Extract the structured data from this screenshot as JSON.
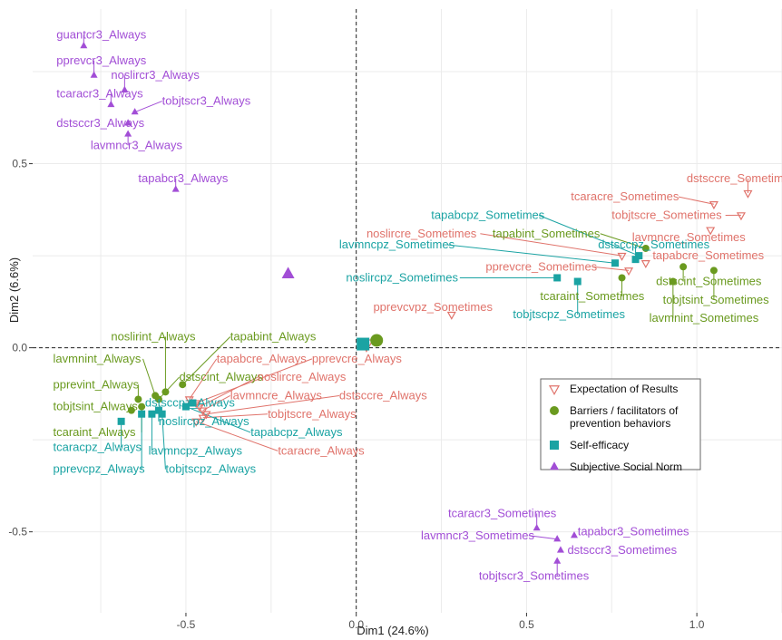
{
  "chart_data": {
    "type": "scatter",
    "xlabel": "Dim1 (24.6%)",
    "ylabel": "Dim2 (6.6%)",
    "xlim": [
      -0.95,
      1.25
    ],
    "ylim": [
      -0.72,
      0.92
    ],
    "xticks": [
      -0.5,
      0.0,
      0.5,
      1.0
    ],
    "xtick_labels": [
      "-0.5",
      "0.0",
      "0.5",
      "1.0"
    ],
    "yticks": [
      -0.5,
      0.0,
      0.5
    ],
    "ytick_labels": [
      "-0.5",
      "0.0",
      "0.5"
    ],
    "grid": true,
    "reference_lines": "dashed lines at x = 0 and y = 0",
    "legend_position": "inside-right",
    "groups": [
      {
        "key": "expectation",
        "legend": "Expectation of Results",
        "shape": "triangle-down-open",
        "color": "#e0736b"
      },
      {
        "key": "barriers",
        "legend": "Barriers / facilitators of\nprevention behaviors",
        "shape": "circle",
        "color": "#6a9a1f"
      },
      {
        "key": "selfefficacy",
        "legend": "Self-efficacy",
        "shape": "square",
        "color": "#1aa3a3"
      },
      {
        "key": "social",
        "legend": "Subjective Social Norm",
        "shape": "triangle-up",
        "color": "#a24ed6"
      }
    ],
    "centroids": [
      {
        "group": "expectation",
        "x": 0.03,
        "y": 0.01
      },
      {
        "group": "barriers",
        "x": 0.06,
        "y": 0.02
      },
      {
        "group": "selfefficacy",
        "x": 0.02,
        "y": 0.01
      },
      {
        "group": "social",
        "x": -0.2,
        "y": 0.2
      }
    ],
    "points": [
      {
        "group": "social",
        "label": "guantcr3_Always",
        "x": -0.8,
        "y": 0.82,
        "lx": -0.88,
        "ly": 0.84
      },
      {
        "group": "social",
        "label": "pprevcr3_Always",
        "x": -0.77,
        "y": 0.74,
        "lx": -0.88,
        "ly": 0.77
      },
      {
        "group": "social",
        "label": "noslircr3_Always",
        "x": -0.68,
        "y": 0.7,
        "lx": -0.72,
        "ly": 0.73
      },
      {
        "group": "social",
        "label": "tcaracr3_Always",
        "x": -0.72,
        "y": 0.66,
        "lx": -0.88,
        "ly": 0.68
      },
      {
        "group": "social",
        "label": "tobjtscr3_Always",
        "x": -0.65,
        "y": 0.64,
        "lx": -0.57,
        "ly": 0.66
      },
      {
        "group": "social",
        "label": "dstsccr3_Always",
        "x": -0.67,
        "y": 0.61,
        "lx": -0.88,
        "ly": 0.6
      },
      {
        "group": "social",
        "label": "lavmncr3_Always",
        "x": -0.67,
        "y": 0.58,
        "lx": -0.78,
        "ly": 0.54
      },
      {
        "group": "social",
        "label": "tapabcr3_Always",
        "x": -0.53,
        "y": 0.43,
        "lx": -0.64,
        "ly": 0.45
      },
      {
        "group": "expectation",
        "label": "dstsccre_Sometimes",
        "x": 1.15,
        "y": 0.42,
        "lx": 0.97,
        "ly": 0.45
      },
      {
        "group": "expectation",
        "label": "tcaracre_Sometimes",
        "x": 1.05,
        "y": 0.39,
        "lx": 0.63,
        "ly": 0.4
      },
      {
        "group": "expectation",
        "label": "tobjtscre_Sometimes",
        "x": 1.13,
        "y": 0.36,
        "lx": 0.75,
        "ly": 0.35
      },
      {
        "group": "expectation",
        "label": "lavmncre_Sometimes",
        "x": 1.04,
        "y": 0.32,
        "lx": 0.81,
        "ly": 0.29
      },
      {
        "group": "expectation",
        "label": "noslircre_Sometimes",
        "x": 0.78,
        "y": 0.25,
        "lx": 0.03,
        "ly": 0.3
      },
      {
        "group": "expectation",
        "label": "tapabcre_Sometimes",
        "x": 0.85,
        "y": 0.23,
        "lx": 0.87,
        "ly": 0.24
      },
      {
        "group": "expectation",
        "label": "pprevcre_Sometimes",
        "x": 0.8,
        "y": 0.21,
        "lx": 0.38,
        "ly": 0.21
      },
      {
        "group": "expectation",
        "label": "pprevcvpz_Sometimes",
        "x": 0.28,
        "y": 0.09,
        "lx": 0.05,
        "ly": 0.1
      },
      {
        "group": "barriers",
        "label": "tapabint_Sometimes",
        "x": 0.85,
        "y": 0.27,
        "lx": 0.4,
        "ly": 0.3
      },
      {
        "group": "barriers",
        "label": "dstscint_Sometimes",
        "x": 0.96,
        "y": 0.22,
        "lx": 0.88,
        "ly": 0.17
      },
      {
        "group": "barriers",
        "label": "tobjtsint_Sometimes",
        "x": 1.05,
        "y": 0.21,
        "lx": 0.9,
        "ly": 0.12
      },
      {
        "group": "barriers",
        "label": "lavmnint_Sometimes",
        "x": 0.93,
        "y": 0.18,
        "lx": 0.86,
        "ly": 0.07
      },
      {
        "group": "barriers",
        "label": "tcaraint_Sometimes",
        "x": 0.78,
        "y": 0.19,
        "lx": 0.54,
        "ly": 0.13
      },
      {
        "group": "selfefficacy",
        "label": "tapabcpz_Sometimes",
        "x": 0.83,
        "y": 0.25,
        "lx": 0.22,
        "ly": 0.35
      },
      {
        "group": "selfefficacy",
        "label": "dstsccpz_Sometimes",
        "x": 0.82,
        "y": 0.24,
        "lx": 0.71,
        "ly": 0.27
      },
      {
        "group": "selfefficacy",
        "label": "lavmncpz_Sometimes",
        "x": 0.76,
        "y": 0.23,
        "lx": -0.05,
        "ly": 0.27
      },
      {
        "group": "selfefficacy",
        "label": "noslircpz_Sometimes",
        "x": 0.59,
        "y": 0.19,
        "lx": -0.03,
        "ly": 0.18
      },
      {
        "group": "selfefficacy",
        "label": "tobjtscpz_Sometimes",
        "x": 0.65,
        "y": 0.18,
        "lx": 0.46,
        "ly": 0.08
      },
      {
        "group": "social",
        "label": "tcaracr3_Sometimes",
        "x": 0.53,
        "y": -0.49,
        "lx": 0.27,
        "ly": -0.46
      },
      {
        "group": "social",
        "label": "lavmncr3_Sometimes",
        "x": 0.59,
        "y": -0.52,
        "lx": 0.19,
        "ly": -0.52
      },
      {
        "group": "social",
        "label": "tapabcr3_Sometimes",
        "x": 0.64,
        "y": -0.51,
        "lx": 0.65,
        "ly": -0.51
      },
      {
        "group": "social",
        "label": "dstsccr3_Sometimes",
        "x": 0.6,
        "y": -0.55,
        "lx": 0.62,
        "ly": -0.56
      },
      {
        "group": "social",
        "label": "tobjtscr3_Sometimes",
        "x": 0.59,
        "y": -0.58,
        "lx": 0.36,
        "ly": -0.63
      },
      {
        "group": "barriers",
        "label": "noslirint_Always",
        "x": -0.56,
        "y": -0.12,
        "lx": -0.72,
        "ly": 0.02
      },
      {
        "group": "barriers",
        "label": "tapabint_Always",
        "x": -0.51,
        "y": -0.1,
        "lx": -0.37,
        "ly": 0.02
      },
      {
        "group": "barriers",
        "label": "lavmnint_Always",
        "x": -0.59,
        "y": -0.13,
        "lx": -0.89,
        "ly": -0.04
      },
      {
        "group": "barriers",
        "label": "dstscint_Always",
        "x": -0.58,
        "y": -0.14,
        "lx": -0.52,
        "ly": -0.09
      },
      {
        "group": "barriers",
        "label": "pprevint_Always",
        "x": -0.64,
        "y": -0.14,
        "lx": -0.89,
        "ly": -0.11
      },
      {
        "group": "barriers",
        "label": "tobjtsint_Always",
        "x": -0.66,
        "y": -0.17,
        "lx": -0.89,
        "ly": -0.17
      },
      {
        "group": "barriers",
        "label": "tcaraint_Always",
        "x": -0.63,
        "y": -0.16,
        "lx": -0.89,
        "ly": -0.24
      },
      {
        "group": "expectation",
        "label": "tapabcre_Always",
        "x": -0.49,
        "y": -0.14,
        "lx": -0.41,
        "ly": -0.04
      },
      {
        "group": "expectation",
        "label": "pprevcre_Always",
        "x": -0.47,
        "y": -0.15,
        "lx": -0.13,
        "ly": -0.04
      },
      {
        "group": "expectation",
        "label": "noslircre_Always",
        "x": -0.46,
        "y": -0.16,
        "lx": -0.29,
        "ly": -0.09
      },
      {
        "group": "expectation",
        "label": "lavmncre_Always",
        "x": -0.45,
        "y": -0.17,
        "lx": -0.37,
        "ly": -0.14
      },
      {
        "group": "expectation",
        "label": "dstsccre_Always",
        "x": -0.44,
        "y": -0.18,
        "lx": -0.05,
        "ly": -0.14
      },
      {
        "group": "expectation",
        "label": "tobjtscre_Always",
        "x": -0.45,
        "y": -0.19,
        "lx": -0.26,
        "ly": -0.19
      },
      {
        "group": "expectation",
        "label": "tcaracre_Always",
        "x": -0.47,
        "y": -0.2,
        "lx": -0.23,
        "ly": -0.29
      },
      {
        "group": "selfefficacy",
        "label": "tcaracpz_Always",
        "x": -0.69,
        "y": -0.2,
        "lx": -0.89,
        "ly": -0.28
      },
      {
        "group": "selfefficacy",
        "label": "pprevcpz_Always",
        "x": -0.63,
        "y": -0.18,
        "lx": -0.89,
        "ly": -0.34
      },
      {
        "group": "selfefficacy",
        "label": "dstsccpz_Always",
        "x": -0.48,
        "y": -0.15,
        "lx": -0.62,
        "ly": -0.16
      },
      {
        "group": "selfefficacy",
        "label": "noslircpz_Always",
        "x": -0.58,
        "y": -0.17,
        "lx": -0.58,
        "ly": -0.21
      },
      {
        "group": "selfefficacy",
        "label": "lavmncpz_Always",
        "x": -0.6,
        "y": -0.18,
        "lx": -0.61,
        "ly": -0.29
      },
      {
        "group": "selfefficacy",
        "label": "tobjtscpz_Always",
        "x": -0.57,
        "y": -0.18,
        "lx": -0.56,
        "ly": -0.34
      },
      {
        "group": "selfefficacy",
        "label": "tapabcpz_Always",
        "x": -0.5,
        "y": -0.16,
        "lx": -0.31,
        "ly": -0.24
      }
    ]
  }
}
